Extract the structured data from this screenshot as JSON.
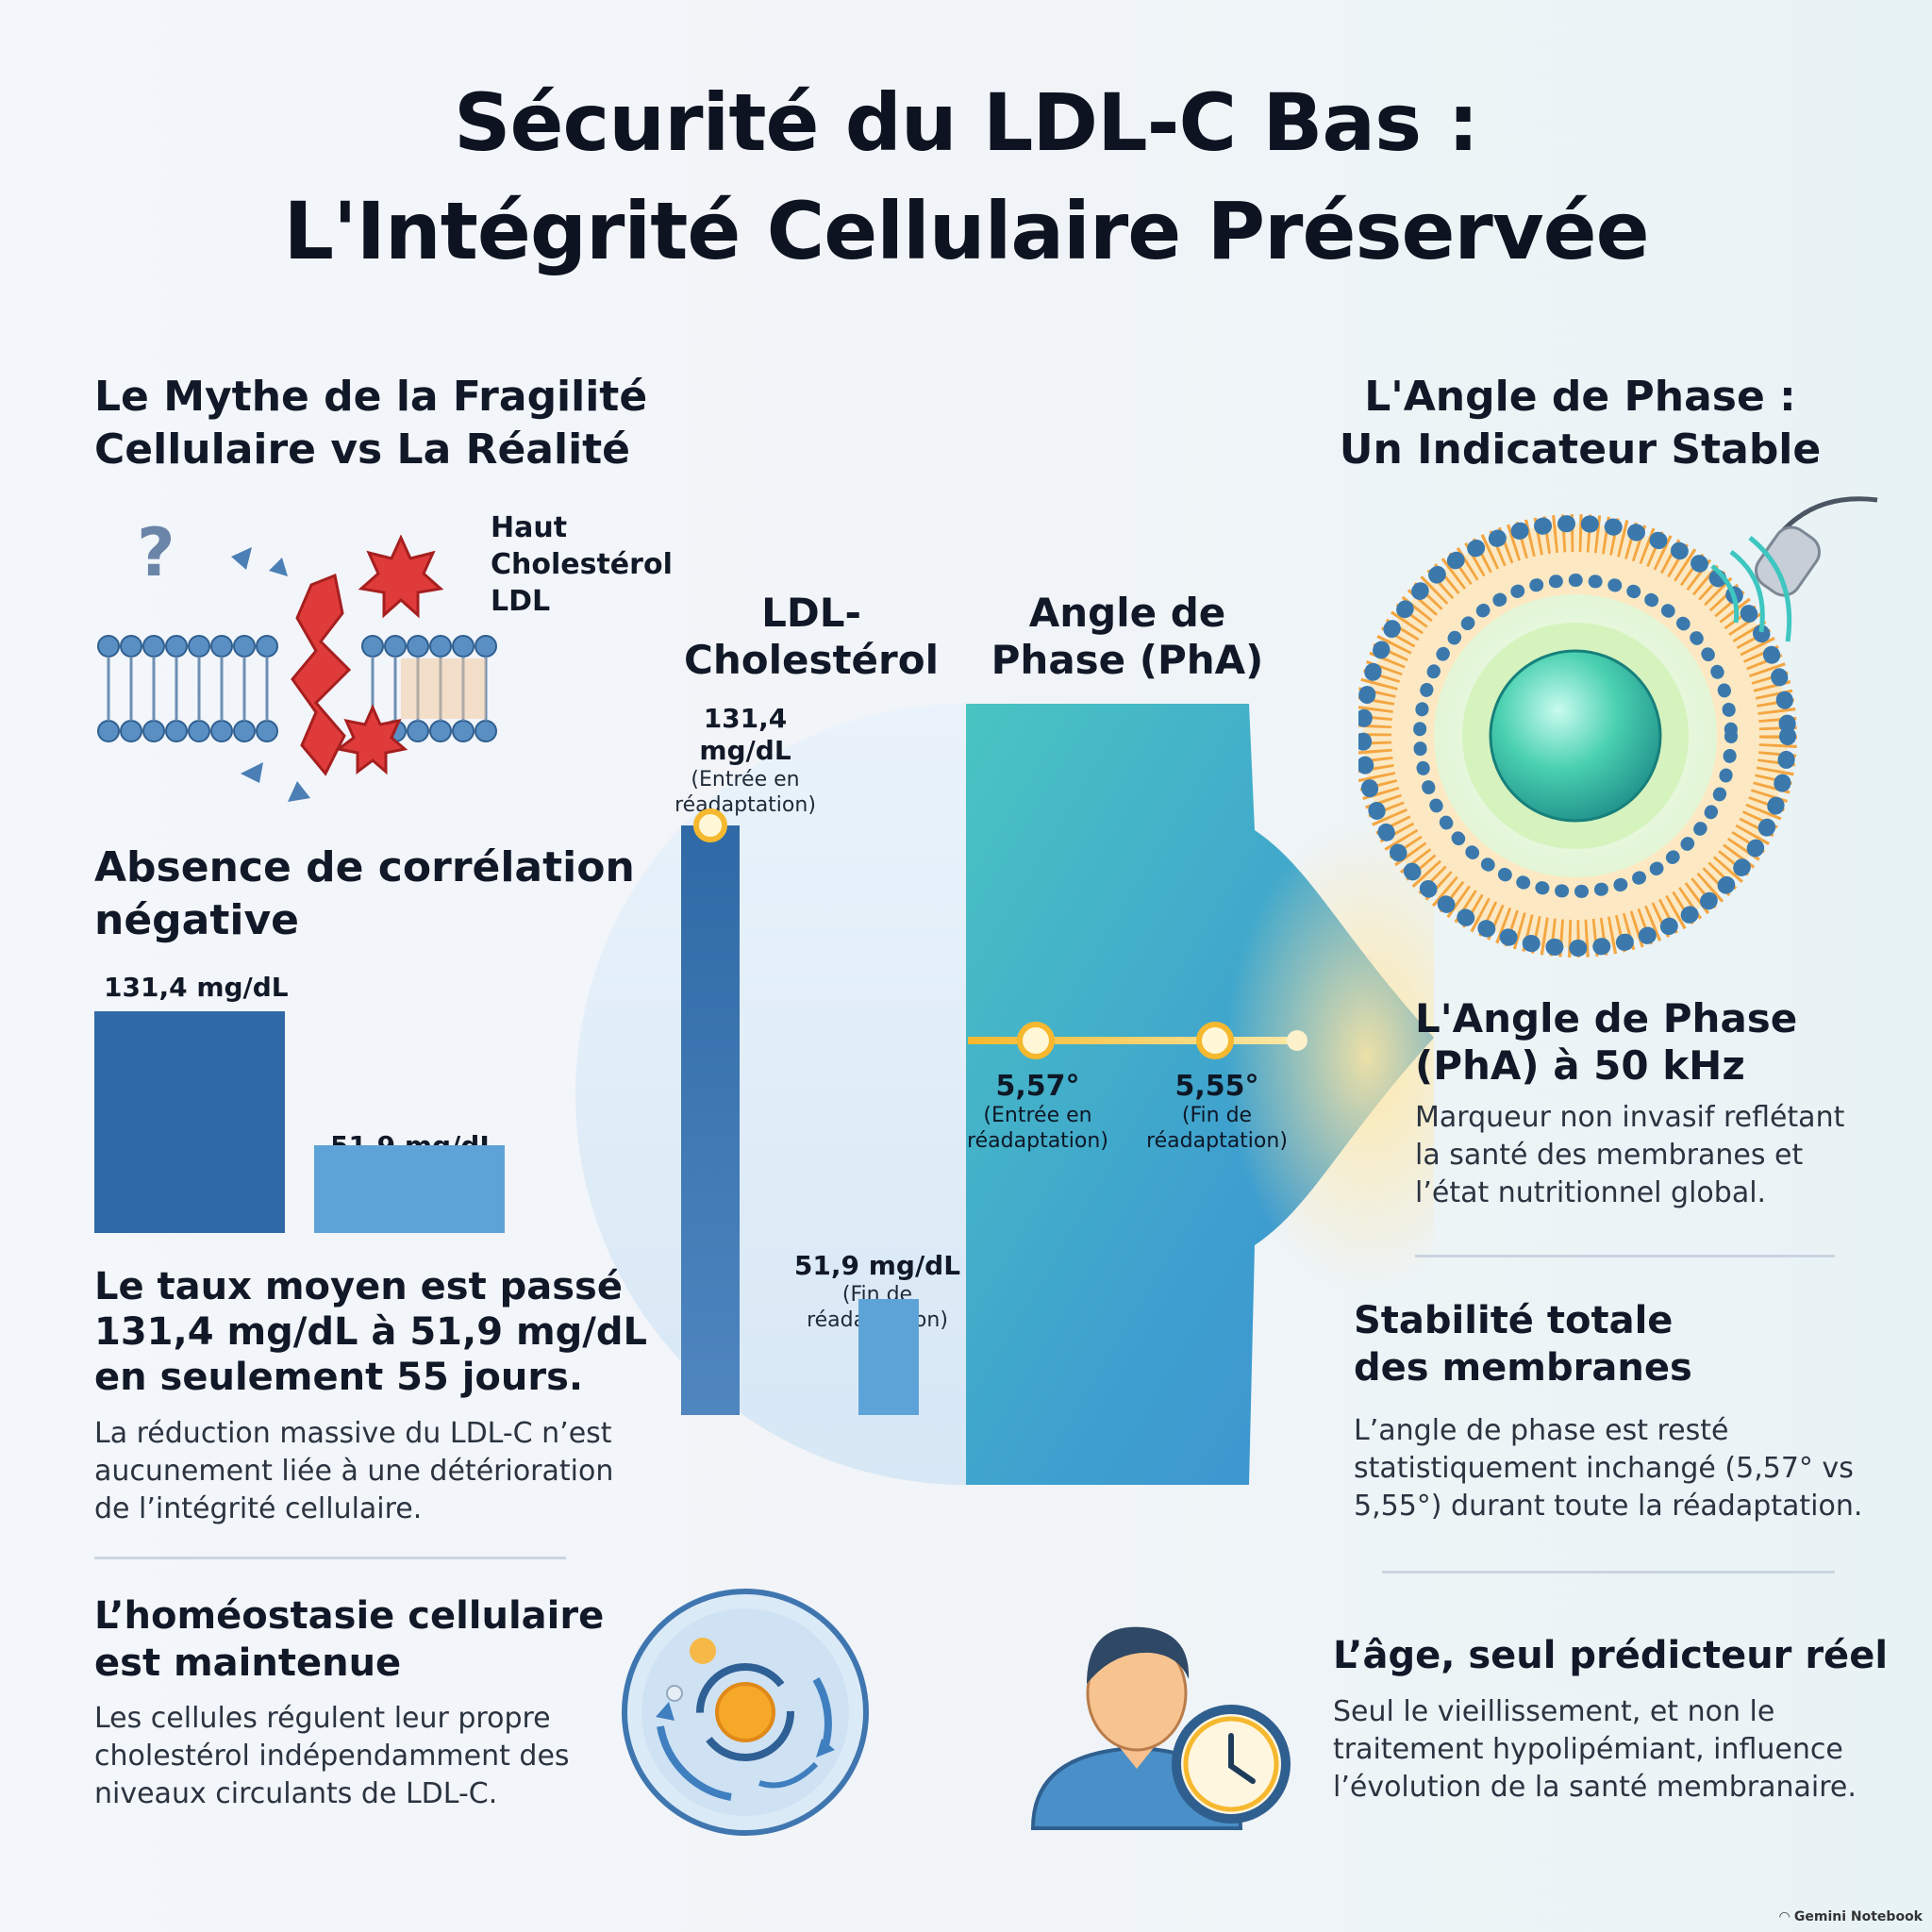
{
  "title": {
    "line1": "Sécurité du LDL-C Bas :",
    "line2": "L'Intégrité Cellulaire Préservée"
  },
  "left": {
    "myth_heading_l1": "Le Mythe de la Fragilité",
    "myth_heading_l2": "Cellulaire vs La Réalité",
    "myth_question": "?",
    "myth_label": [
      "Haut",
      "Cholestérol",
      "LDL"
    ],
    "corr_heading_l1": "Absence de corrélation",
    "corr_heading_l2": "négative",
    "bar_high_label": "131,4 mg/dL",
    "bar_low_label": "51,9 mg/dL",
    "bar_high_value": 131.4,
    "bar_low_value": 51.9,
    "taux_heading": [
      "Le taux moyen est passé de",
      "131,4 mg/dL à 51,9 mg/dL",
      "en seulement 55 jours."
    ],
    "taux_text": [
      "La réduction massive du LDL-C n’est",
      "aucunement liée à une détérioration",
      "de l’intégrité cellulaire."
    ],
    "homeo_heading": [
      "L’homéostasie cellulaire",
      "est maintenue"
    ],
    "homeo_text": [
      "Les cellules régulent leur propre",
      "cholestérol indépendamment des",
      "niveaux circulants de LDL-C."
    ]
  },
  "center": {
    "ldl_head": [
      "LDL-",
      "Cholestérol"
    ],
    "pha_head": [
      "Angle de",
      "Phase (PhA)"
    ],
    "ldl_entry_value": "131,4 mg/dL",
    "ldl_entry_note": [
      "(Entrée en",
      "réadaptation)"
    ],
    "ldl_end_value": "51,9 mg/dL",
    "ldl_end_note": [
      "(Fin de",
      "réadaptation)"
    ],
    "pha_entry_value": "5,57°",
    "pha_entry_note": [
      "(Entrée en",
      "réadaptation)"
    ],
    "pha_end_value": "5,55°",
    "pha_end_note": [
      "(Fin de",
      "réadaptation)"
    ]
  },
  "right": {
    "heading": [
      "L'Angle de Phase :",
      "Un Indicateur Stable"
    ],
    "pha_heading": [
      "L'Angle de Phase",
      "(PhA) à 50 kHz"
    ],
    "pha_text": [
      "Marqueur non invasif reflétant",
      "la santé des membranes et",
      "l’état nutritionnel global."
    ],
    "stab_heading": [
      "Stabilité totale",
      "des membranes"
    ],
    "stab_text": [
      "L’angle de phase est resté",
      "statistiquement inchangé (5,57° vs",
      "5,55°) durant toute la réadaptation."
    ],
    "age_heading": "L’âge, seul prédicteur réel",
    "age_text": [
      "Seul le vieillissement, et non le",
      "traitement hypolipémiant, influence",
      "l’évolution de la santé membranaire."
    ]
  },
  "footer": {
    "brand": "Gemini Notebook"
  },
  "colors": {
    "dark_blue": "#2f6aa6",
    "light_blue": "#5ea3d8",
    "gold": "#f5b82e",
    "teal": "#3ec6c0"
  }
}
